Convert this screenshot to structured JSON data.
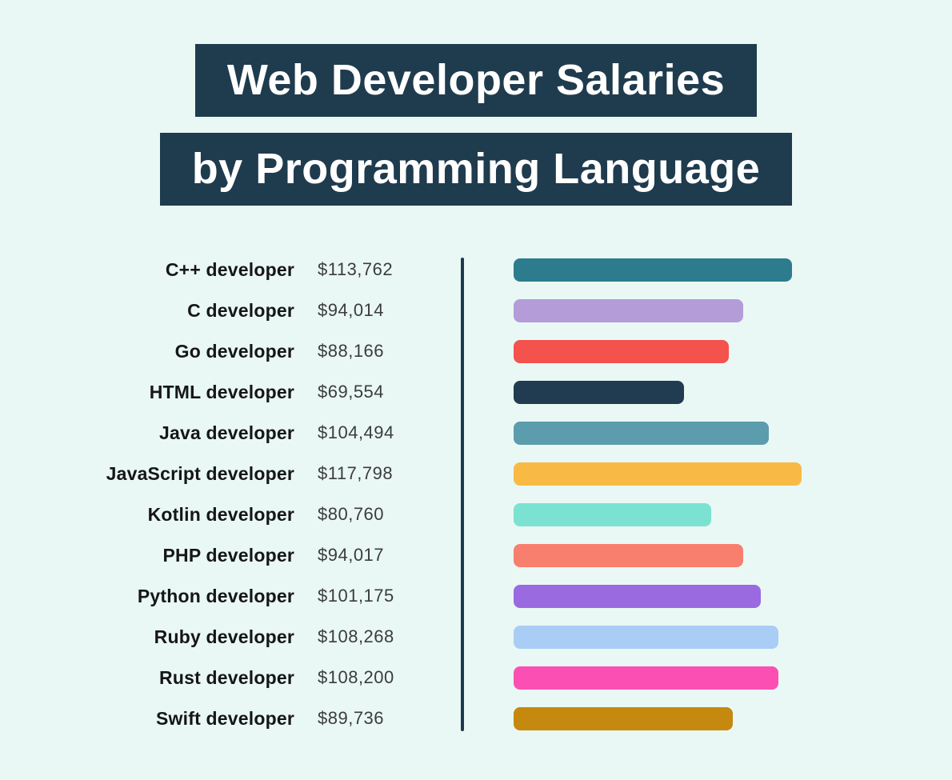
{
  "page": {
    "background_color": "#e9f8f4"
  },
  "title": {
    "line1": "Web Developer Salaries",
    "line2": "by Programming Language",
    "box_color": "#1f3b4e",
    "text_color": "#ffffff"
  },
  "chart_data": {
    "type": "bar",
    "orientation": "horizontal",
    "title": "Web Developer Salaries by Programming Language",
    "categories": [
      "C++ developer",
      "C developer",
      "Go developer",
      "HTML developer",
      "Java developer",
      "JavaScript developer",
      "Kotlin developer",
      "PHP developer",
      "Python developer",
      "Ruby developer",
      "Rust developer",
      "Swift developer"
    ],
    "values": [
      113762,
      94014,
      88166,
      69554,
      104494,
      117798,
      80760,
      94017,
      101175,
      108268,
      108200,
      89736
    ],
    "value_labels": [
      "$113,762",
      "$94,014",
      "$88,166",
      "$69,554",
      "$104,494",
      "$117,798",
      "$80,760",
      "$94,017",
      "$101,175",
      "$108,268",
      "$108,200",
      "$89,736"
    ],
    "bar_colors": [
      "#2c7c8e",
      "#b49cd9",
      "#f4524c",
      "#213c50",
      "#5b9dac",
      "#f8ba45",
      "#7be2d2",
      "#f87f6d",
      "#9a6ae1",
      "#aacdf6",
      "#fb4fb3",
      "#c5890f"
    ],
    "xlim": [
      0,
      117798
    ],
    "grid": false,
    "legend": false,
    "divider_color": "#1e3a4d"
  }
}
